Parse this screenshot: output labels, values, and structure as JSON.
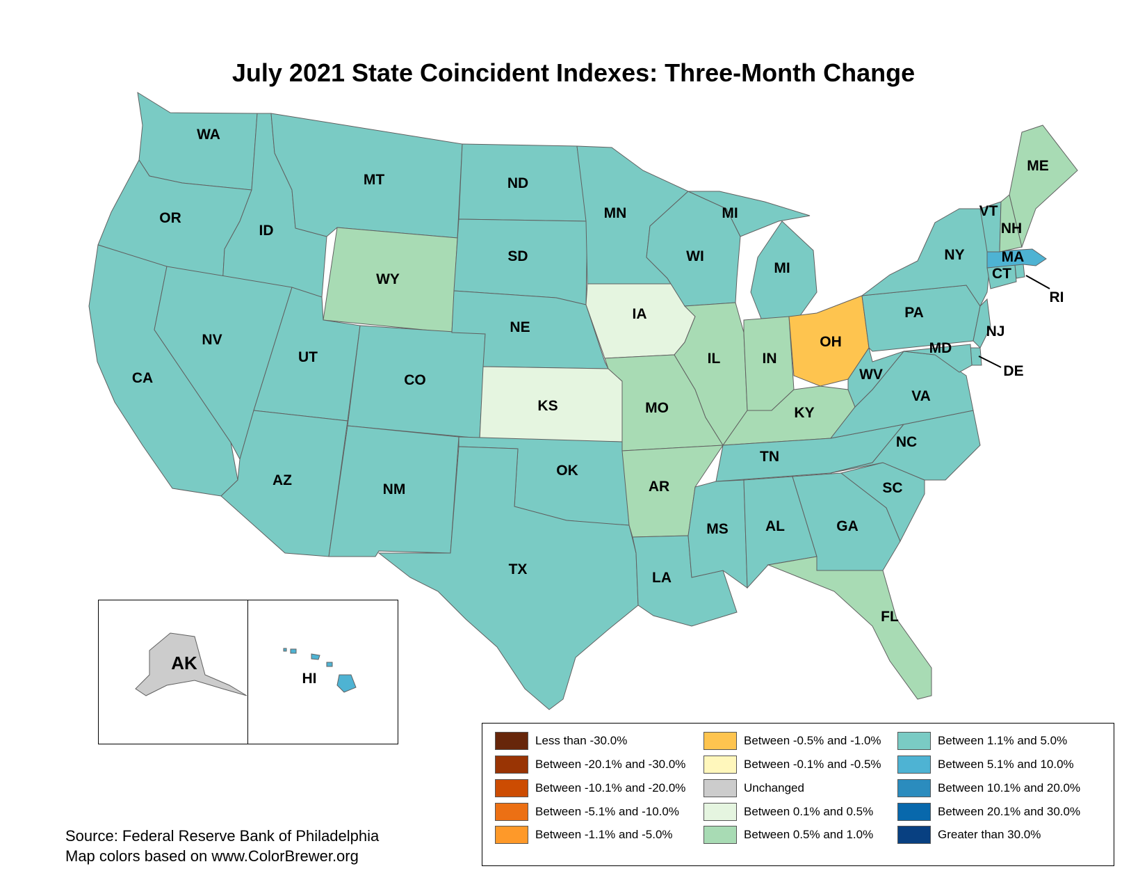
{
  "title": "July 2021 State Coincident Indexes: Three-Month Change",
  "source_lines": [
    "Source: Federal Reserve Bank of Philadelphia",
    "Map colors based on www.ColorBrewer.org"
  ],
  "colors": {
    "lt_m30": "#67260a",
    "m20_m30": "#993404",
    "m10_m20": "#cc4c02",
    "m5_m10": "#ec7014",
    "m1_m5": "#fe9929",
    "m05_m1": "#fec44f",
    "m01_m05": "#fff7bc",
    "unchanged": "#cccccc",
    "p01_p05": "#e5f5e0",
    "p05_p1": "#a8dbb4",
    "p1_p5": "#7acbc4",
    "p5_p10": "#4eb3d3",
    "p10_p20": "#2b8cbe",
    "p20_p30": "#0868ac",
    "gt_p30": "#084081"
  },
  "legend": [
    {
      "label": "Less than -30.0%",
      "cls": "lt_m30"
    },
    {
      "label": "Between -20.1% and -30.0%",
      "cls": "m20_m30"
    },
    {
      "label": "Between -10.1% and -20.0%",
      "cls": "m10_m20"
    },
    {
      "label": "Between -5.1% and -10.0%",
      "cls": "m5_m10"
    },
    {
      "label": "Between -1.1% and -5.0%",
      "cls": "m1_m5"
    },
    {
      "label": "Between -0.5% and -1.0%",
      "cls": "m05_m1"
    },
    {
      "label": "Between -0.1% and -0.5%",
      "cls": "m01_m05"
    },
    {
      "label": "Unchanged",
      "cls": "unchanged"
    },
    {
      "label": "Between 0.1% and 0.5%",
      "cls": "p01_p05"
    },
    {
      "label": "Between 0.5% and 1.0%",
      "cls": "p05_p1"
    },
    {
      "label": "Between 1.1% and 5.0%",
      "cls": "p1_p5"
    },
    {
      "label": "Between 5.1% and 10.0%",
      "cls": "p5_p10"
    },
    {
      "label": "Between 10.1% and 20.0%",
      "cls": "p10_p20"
    },
    {
      "label": "Between 20.1% and 30.0%",
      "cls": "p20_p30"
    },
    {
      "label": "Greater than 30.0%",
      "cls": "gt_p30"
    }
  ],
  "states": {
    "WA": "p1_p5",
    "OR": "p1_p5",
    "CA": "p1_p5",
    "ID": "p1_p5",
    "NV": "p1_p5",
    "MT": "p1_p5",
    "WY": "p05_p1",
    "UT": "p1_p5",
    "AZ": "p1_p5",
    "CO": "p1_p5",
    "NM": "p1_p5",
    "ND": "p1_p5",
    "SD": "p1_p5",
    "NE": "p1_p5",
    "KS": "p01_p05",
    "OK": "p1_p5",
    "TX": "p1_p5",
    "MN": "p1_p5",
    "IA": "p01_p05",
    "MO": "p05_p1",
    "AR": "p05_p1",
    "LA": "p1_p5",
    "WI": "p1_p5",
    "IL": "p05_p1",
    "MI": "p1_p5",
    "IN": "p05_p1",
    "OH": "m05_m1",
    "KY": "p05_p1",
    "TN": "p1_p5",
    "MS": "p1_p5",
    "AL": "p1_p5",
    "GA": "p1_p5",
    "FL": "p05_p1",
    "SC": "p1_p5",
    "NC": "p1_p5",
    "VA": "p1_p5",
    "WV": "p1_p5",
    "PA": "p1_p5",
    "NY": "p1_p5",
    "NJ": "p1_p5",
    "DE": "p1_p5",
    "MD": "p1_p5",
    "CT": "p1_p5",
    "RI": "p1_p5",
    "MA": "p5_p10",
    "VT": "p1_p5",
    "NH": "p05_p1",
    "ME": "p05_p1",
    "AK": "unchanged",
    "HI": "p5_p10"
  }
}
